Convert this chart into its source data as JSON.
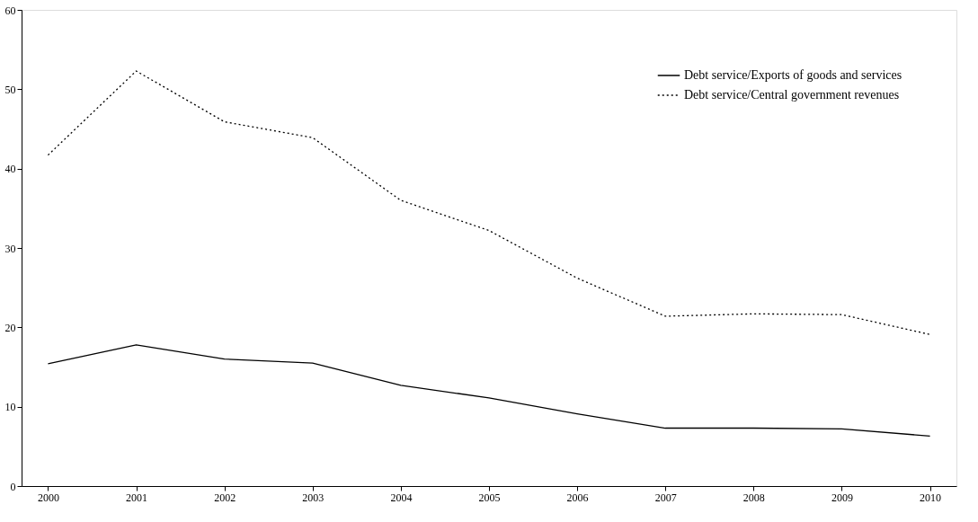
{
  "chart_data": {
    "type": "line",
    "categories": [
      "2000",
      "2001",
      "2002",
      "2003",
      "2004",
      "2005",
      "2006",
      "2007",
      "2008",
      "2009",
      "2010"
    ],
    "series": [
      {
        "name": "Debt service/Exports of goods and services",
        "color": "#000000",
        "line_style": "solid",
        "values": [
          15.4,
          17.8,
          16.0,
          15.5,
          12.7,
          11.1,
          9.1,
          7.3,
          7.3,
          7.2,
          6.3
        ]
      },
      {
        "name": "Debt service/Central government revenues",
        "color": "#000000",
        "line_style": "dotted",
        "values": [
          41.7,
          52.3,
          45.9,
          43.9,
          36.0,
          32.2,
          26.2,
          21.4,
          21.7,
          21.6,
          19.1
        ]
      }
    ],
    "ylim": [
      0,
      60
    ],
    "yticks": [
      0,
      10,
      20,
      30,
      40,
      50,
      60
    ],
    "grid": false,
    "legend": "top right",
    "marker": "none"
  }
}
